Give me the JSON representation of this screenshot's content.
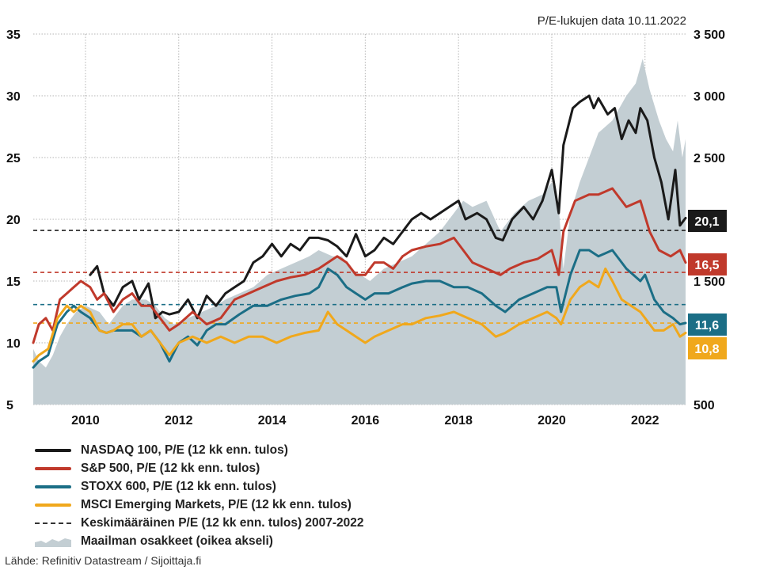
{
  "note": "P/E-lukujen data 10.11.2022",
  "source": "Lähde: Refinitiv Datastream / Sijoittaja.fi",
  "chart_data": {
    "type": "line",
    "x_ticks": [
      "2010",
      "2012",
      "2014",
      "2016",
      "2018",
      "2020",
      "2022"
    ],
    "y_left": {
      "range": [
        5,
        35
      ],
      "ticks": [
        "5",
        "10",
        "15",
        "20",
        "25",
        "30",
        "35"
      ]
    },
    "y_right": {
      "range": [
        500,
        3500
      ],
      "ticks": [
        "500",
        "",
        "1 500",
        "",
        "2 500",
        "3 000",
        "3 500"
      ]
    },
    "x_range": [
      2008.88,
      2022.87
    ],
    "grid": true,
    "legend_position": "bottom",
    "series": [
      {
        "name": "NASDAQ 100, P/E (12 kk enn. tulos)",
        "color": "#1a1a1a",
        "end_label": "20,1",
        "x": [
          2010.1,
          2010.25,
          2010.4,
          2010.6,
          2010.8,
          2011.0,
          2011.15,
          2011.35,
          2011.5,
          2011.65,
          2011.8,
          2012.0,
          2012.2,
          2012.4,
          2012.6,
          2012.8,
          2013.0,
          2013.2,
          2013.4,
          2013.6,
          2013.8,
          2014.0,
          2014.2,
          2014.4,
          2014.6,
          2014.8,
          2015.0,
          2015.2,
          2015.4,
          2015.6,
          2015.8,
          2016.0,
          2016.2,
          2016.4,
          2016.6,
          2016.8,
          2017.0,
          2017.2,
          2017.4,
          2017.6,
          2017.8,
          2018.0,
          2018.15,
          2018.4,
          2018.6,
          2018.8,
          2018.95,
          2019.15,
          2019.4,
          2019.6,
          2019.8,
          2020.0,
          2020.15,
          2020.25,
          2020.45,
          2020.6,
          2020.8,
          2020.9,
          2021.0,
          2021.2,
          2021.35,
          2021.5,
          2021.65,
          2021.8,
          2021.9,
          2022.05,
          2022.2,
          2022.35,
          2022.5,
          2022.65,
          2022.75,
          2022.87
        ],
        "y": [
          15.5,
          16.2,
          14.0,
          13.0,
          14.5,
          15.0,
          13.5,
          14.8,
          12.0,
          12.5,
          12.3,
          12.5,
          13.5,
          12.0,
          13.8,
          13.0,
          14.0,
          14.5,
          15.0,
          16.5,
          17.0,
          18.0,
          17.0,
          18.0,
          17.5,
          18.5,
          18.5,
          18.3,
          17.8,
          17.0,
          18.8,
          17.0,
          17.5,
          18.5,
          18.0,
          19.0,
          20.0,
          20.5,
          20.0,
          20.5,
          21.0,
          21.5,
          20.0,
          20.5,
          20.0,
          18.5,
          18.3,
          20.0,
          21.0,
          20.0,
          21.5,
          24.0,
          20.5,
          26.0,
          29.0,
          29.5,
          30.0,
          29.0,
          29.8,
          28.5,
          29.0,
          26.5,
          28.0,
          27.0,
          29.0,
          28.0,
          25.0,
          23.0,
          20.0,
          24.0,
          19.5,
          20.1
        ]
      },
      {
        "name": "S&P 500, P/E (12 kk enn. tulos)",
        "color": "#c0392b",
        "end_label": "16,5",
        "x": [
          2008.88,
          2009.0,
          2009.15,
          2009.3,
          2009.45,
          2009.6,
          2009.75,
          2009.9,
          2010.1,
          2010.25,
          2010.4,
          2010.6,
          2010.8,
          2011.0,
          2011.2,
          2011.4,
          2011.6,
          2011.8,
          2012.0,
          2012.3,
          2012.6,
          2012.9,
          2013.2,
          2013.5,
          2013.8,
          2014.1,
          2014.4,
          2014.7,
          2015.0,
          2015.2,
          2015.4,
          2015.6,
          2015.8,
          2016.0,
          2016.2,
          2016.4,
          2016.6,
          2016.8,
          2017.0,
          2017.3,
          2017.6,
          2017.9,
          2018.1,
          2018.3,
          2018.6,
          2018.9,
          2019.1,
          2019.4,
          2019.7,
          2020.0,
          2020.15,
          2020.25,
          2020.5,
          2020.8,
          2021.0,
          2021.3,
          2021.6,
          2021.9,
          2022.1,
          2022.3,
          2022.55,
          2022.75,
          2022.87
        ],
        "y": [
          10.0,
          11.5,
          12.0,
          11.0,
          13.5,
          14.0,
          14.5,
          15.0,
          14.5,
          13.5,
          14.0,
          12.5,
          13.5,
          14.0,
          13.0,
          13.0,
          12.0,
          11.0,
          11.5,
          12.5,
          11.5,
          12.0,
          13.5,
          14.0,
          14.5,
          15.0,
          15.3,
          15.5,
          16.0,
          16.5,
          17.0,
          16.5,
          15.5,
          15.5,
          16.5,
          16.5,
          16.0,
          17.0,
          17.5,
          17.8,
          18.0,
          18.5,
          17.5,
          16.5,
          16.0,
          15.5,
          16.0,
          16.5,
          16.8,
          17.5,
          15.5,
          19.0,
          21.5,
          22.0,
          22.0,
          22.5,
          21.0,
          21.5,
          19.0,
          17.5,
          17.0,
          17.5,
          16.5
        ]
      },
      {
        "name": "STOXX 600, P/E (12 kk enn. tulos)",
        "color": "#1b6e86",
        "end_label": "11,6",
        "x": [
          2008.88,
          2009.0,
          2009.2,
          2009.4,
          2009.6,
          2009.75,
          2009.9,
          2010.1,
          2010.3,
          2010.45,
          2010.6,
          2010.8,
          2011.0,
          2011.2,
          2011.4,
          2011.6,
          2011.8,
          2012.0,
          2012.2,
          2012.4,
          2012.6,
          2012.8,
          2013.0,
          2013.3,
          2013.6,
          2013.9,
          2014.2,
          2014.5,
          2014.8,
          2015.0,
          2015.2,
          2015.4,
          2015.6,
          2015.8,
          2016.0,
          2016.2,
          2016.5,
          2016.8,
          2017.0,
          2017.3,
          2017.6,
          2017.9,
          2018.2,
          2018.5,
          2018.8,
          2019.0,
          2019.3,
          2019.6,
          2019.9,
          2020.1,
          2020.2,
          2020.4,
          2020.6,
          2020.8,
          2021.0,
          2021.3,
          2021.6,
          2021.9,
          2022.0,
          2022.2,
          2022.4,
          2022.6,
          2022.75,
          2022.87
        ],
        "y": [
          8.0,
          8.5,
          9.0,
          11.5,
          12.5,
          13.0,
          12.5,
          12.0,
          11.0,
          10.8,
          11.0,
          11.0,
          11.0,
          10.5,
          11.0,
          10.0,
          8.5,
          10.0,
          10.5,
          9.8,
          11.0,
          11.5,
          11.5,
          12.3,
          13.0,
          13.0,
          13.5,
          13.8,
          14.0,
          14.5,
          16.0,
          15.5,
          14.5,
          14.0,
          13.5,
          14.0,
          14.0,
          14.5,
          14.8,
          15.0,
          15.0,
          14.5,
          14.5,
          14.0,
          13.0,
          12.5,
          13.5,
          14.0,
          14.5,
          14.5,
          12.5,
          15.5,
          17.5,
          17.5,
          17.0,
          17.5,
          16.0,
          15.0,
          15.5,
          13.5,
          12.5,
          12.0,
          11.5,
          11.6
        ]
      },
      {
        "name": "MSCI Emerging Markets, P/E (12 kk enn. tulos)",
        "color": "#f0a81c",
        "end_label": "10,8",
        "x": [
          2008.88,
          2009.0,
          2009.2,
          2009.4,
          2009.6,
          2009.75,
          2009.9,
          2010.1,
          2010.3,
          2010.45,
          2010.6,
          2010.8,
          2011.0,
          2011.2,
          2011.4,
          2011.6,
          2011.8,
          2012.0,
          2012.3,
          2012.6,
          2012.9,
          2013.2,
          2013.5,
          2013.8,
          2014.1,
          2014.4,
          2014.7,
          2015.0,
          2015.2,
          2015.4,
          2015.6,
          2015.8,
          2016.0,
          2016.2,
          2016.5,
          2016.8,
          2017.0,
          2017.3,
          2017.6,
          2017.9,
          2018.2,
          2018.5,
          2018.8,
          2019.0,
          2019.3,
          2019.6,
          2019.9,
          2020.1,
          2020.2,
          2020.4,
          2020.6,
          2020.8,
          2021.0,
          2021.15,
          2021.3,
          2021.5,
          2021.7,
          2021.9,
          2022.0,
          2022.2,
          2022.4,
          2022.6,
          2022.75,
          2022.87
        ],
        "y": [
          8.5,
          9.0,
          9.5,
          12.0,
          13.0,
          12.5,
          13.0,
          12.5,
          11.0,
          10.8,
          11.0,
          11.5,
          11.5,
          10.5,
          11.0,
          10.0,
          9.0,
          10.0,
          10.5,
          10.0,
          10.5,
          10.0,
          10.5,
          10.5,
          10.0,
          10.5,
          10.8,
          11.0,
          12.5,
          11.5,
          11.0,
          10.5,
          10.0,
          10.5,
          11.0,
          11.5,
          11.5,
          12.0,
          12.2,
          12.5,
          12.0,
          11.5,
          10.5,
          10.8,
          11.5,
          12.0,
          12.5,
          12.0,
          11.5,
          13.5,
          14.5,
          15.0,
          14.5,
          16.0,
          15.0,
          13.5,
          13.0,
          12.5,
          12.0,
          11.0,
          11.0,
          11.5,
          10.5,
          10.8
        ]
      },
      {
        "name": "Keskimääräinen P/E (12 kk enn. tulos) 2007-2022",
        "color": "#333333",
        "dashed": true,
        "levels": [
          {
            "series": "NASDAQ 100",
            "value": 19.1
          },
          {
            "series": "S&P 500",
            "value": 15.7
          },
          {
            "series": "STOXX 600",
            "value": 13.1
          },
          {
            "series": "MSCI Emerging Markets",
            "value": 11.6
          }
        ]
      },
      {
        "name": "Maailman osakkeet (oikea akseli)",
        "color": "#c3ced3",
        "axis": "right",
        "type": "area",
        "x": [
          2008.88,
          2009.0,
          2009.15,
          2009.3,
          2009.45,
          2009.6,
          2009.8,
          2010.0,
          2010.3,
          2010.5,
          2010.8,
          2011.0,
          2011.3,
          2011.5,
          2011.7,
          2011.9,
          2012.2,
          2012.5,
          2012.8,
          2013.0,
          2013.3,
          2013.6,
          2013.9,
          2014.2,
          2014.5,
          2014.8,
          2015.0,
          2015.3,
          2015.5,
          2015.7,
          2015.9,
          2016.1,
          2016.4,
          2016.7,
          2017.0,
          2017.3,
          2017.6,
          2017.9,
          2018.1,
          2018.3,
          2018.6,
          2018.9,
          2019.0,
          2019.2,
          2019.5,
          2019.8,
          2020.0,
          2020.15,
          2020.25,
          2020.4,
          2020.6,
          2020.8,
          2021.0,
          2021.3,
          2021.6,
          2021.8,
          2021.95,
          2022.1,
          2022.3,
          2022.45,
          2022.6,
          2022.7,
          2022.8,
          2022.87
        ],
        "y": [
          950,
          850,
          800,
          900,
          1050,
          1150,
          1250,
          1300,
          1250,
          1150,
          1300,
          1350,
          1350,
          1300,
          1200,
          1150,
          1200,
          1250,
          1300,
          1350,
          1400,
          1450,
          1550,
          1600,
          1650,
          1700,
          1750,
          1700,
          1700,
          1600,
          1550,
          1500,
          1600,
          1650,
          1700,
          1800,
          1900,
          2050,
          2150,
          2100,
          2150,
          1900,
          1950,
          2050,
          2150,
          2200,
          2300,
          2100,
          1600,
          2050,
          2300,
          2500,
          2700,
          2800,
          3000,
          3100,
          3300,
          3050,
          2800,
          2650,
          2550,
          2800,
          2500,
          2650
        ]
      }
    ]
  }
}
